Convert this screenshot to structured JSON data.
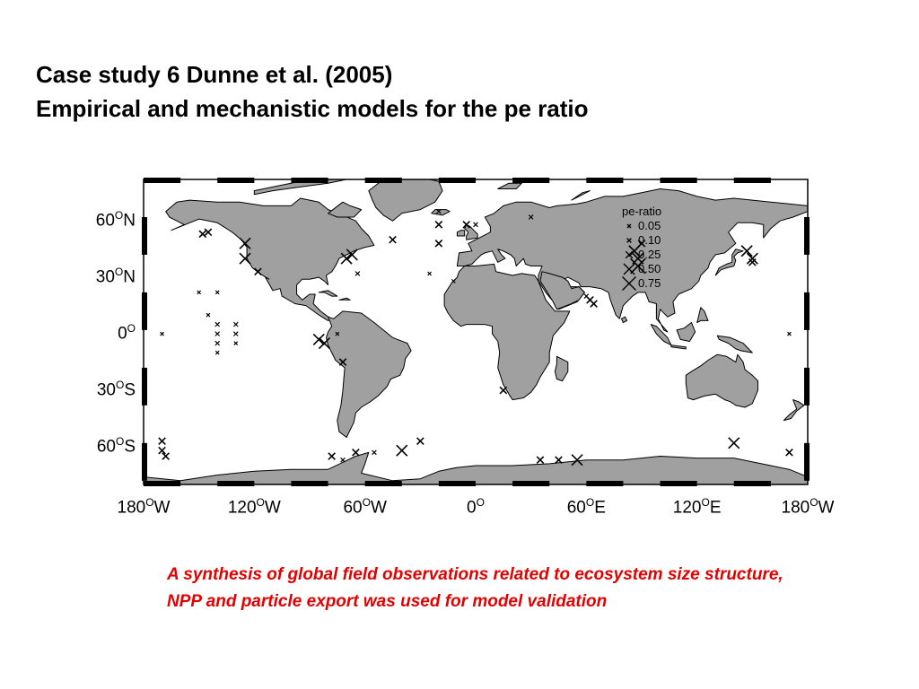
{
  "slide": {
    "title_line1": "Case study 6 Dunne et al. (2005)",
    "title_line2": "Empirical and mechanistic models for the pe ratio",
    "caption": "A synthesis of global field observations related to ecosystem size structure, NPP and particle export was used for model validation"
  },
  "map": {
    "lat_labels": [
      {
        "deg": "60",
        "hem": "N",
        "lat": 60
      },
      {
        "deg": "30",
        "hem": "N",
        "lat": 30
      },
      {
        "deg": "0",
        "hem": "",
        "lat": 0
      },
      {
        "deg": "30",
        "hem": "S",
        "lat": -30
      },
      {
        "deg": "60",
        "hem": "S",
        "lat": -60
      }
    ],
    "lon_labels": [
      {
        "deg": "180",
        "hem": "W",
        "lon": -180
      },
      {
        "deg": "120",
        "hem": "W",
        "lon": -120
      },
      {
        "deg": "60",
        "hem": "W",
        "lon": -60
      },
      {
        "deg": "0",
        "hem": "",
        "lon": 0
      },
      {
        "deg": "60",
        "hem": "E",
        "lon": 60
      },
      {
        "deg": "120",
        "hem": "E",
        "lon": 120
      },
      {
        "deg": "180",
        "hem": "W",
        "lon": 180
      }
    ],
    "degree_symbol": "O",
    "land_color": "#a0a0a0",
    "legend": {
      "title": "pe-ratio",
      "entries": [
        {
          "label": "0.05",
          "value": 0.05
        },
        {
          "label": "0.10",
          "value": 0.1
        },
        {
          "label": "0.25",
          "value": 0.25
        },
        {
          "label": "0.50",
          "value": 0.5
        },
        {
          "label": "0.75",
          "value": 0.75
        }
      ]
    },
    "observations": [
      {
        "lon": 150,
        "lat": 40,
        "pe": 0.5
      },
      {
        "lon": 147,
        "lat": 44,
        "pe": 0.5
      },
      {
        "lon": 150,
        "lat": 38,
        "pe": 0.25
      },
      {
        "lon": 88,
        "lat": 36,
        "pe": 0.75
      },
      {
        "lon": 88,
        "lat": 40,
        "pe": 0.5
      },
      {
        "lon": 86,
        "lat": 44,
        "pe": 0.5
      },
      {
        "lon": 90,
        "lat": 48,
        "pe": 0.25
      },
      {
        "lon": 62,
        "lat": 18,
        "pe": 0.25
      },
      {
        "lon": 64,
        "lat": 16,
        "pe": 0.25
      },
      {
        "lon": 60,
        "lat": 20,
        "pe": 0.1
      },
      {
        "lon": -148,
        "lat": 53,
        "pe": 0.25
      },
      {
        "lon": -145,
        "lat": 54,
        "pe": 0.25
      },
      {
        "lon": -125,
        "lat": 48,
        "pe": 0.5
      },
      {
        "lon": -125,
        "lat": 40,
        "pe": 0.5
      },
      {
        "lon": -118,
        "lat": 33,
        "pe": 0.25
      },
      {
        "lon": -70,
        "lat": 40,
        "pe": 0.5
      },
      {
        "lon": -67,
        "lat": 42,
        "pe": 0.5
      },
      {
        "lon": -45,
        "lat": 50,
        "pe": 0.25
      },
      {
        "lon": -64,
        "lat": 32,
        "pe": 0.1
      },
      {
        "lon": -20,
        "lat": 58,
        "pe": 0.25
      },
      {
        "lon": -20,
        "lat": 48,
        "pe": 0.25
      },
      {
        "lon": -20,
        "lat": 65,
        "pe": 0.1
      },
      {
        "lon": -5,
        "lat": 58,
        "pe": 0.25
      },
      {
        "lon": 0,
        "lat": 58,
        "pe": 0.1
      },
      {
        "lon": 30,
        "lat": 62,
        "pe": 0.1
      },
      {
        "lon": -25,
        "lat": 32,
        "pe": 0.05
      },
      {
        "lon": -12,
        "lat": 28,
        "pe": 0.05
      },
      {
        "lon": -150,
        "lat": 22,
        "pe": 0.05
      },
      {
        "lon": -140,
        "lat": 22,
        "pe": 0.05
      },
      {
        "lon": -140,
        "lat": 5,
        "pe": 0.1
      },
      {
        "lon": -140,
        "lat": 0,
        "pe": 0.1
      },
      {
        "lon": -140,
        "lat": -5,
        "pe": 0.1
      },
      {
        "lon": -140,
        "lat": -10,
        "pe": 0.05
      },
      {
        "lon": -130,
        "lat": 5,
        "pe": 0.1
      },
      {
        "lon": -130,
        "lat": 0,
        "pe": 0.1
      },
      {
        "lon": -130,
        "lat": -5,
        "pe": 0.05
      },
      {
        "lon": -170,
        "lat": 0,
        "pe": 0.05
      },
      {
        "lon": -145,
        "lat": 10,
        "pe": 0.05
      },
      {
        "lon": -85,
        "lat": -3,
        "pe": 0.5
      },
      {
        "lon": -82,
        "lat": -5,
        "pe": 0.5
      },
      {
        "lon": -75,
        "lat": 0,
        "pe": 0.05
      },
      {
        "lon": -72,
        "lat": -15,
        "pe": 0.25
      },
      {
        "lon": 15,
        "lat": -30,
        "pe": 0.25
      },
      {
        "lon": -170,
        "lat": -57,
        "pe": 0.25
      },
      {
        "lon": -170,
        "lat": -62,
        "pe": 0.25
      },
      {
        "lon": -168,
        "lat": -65,
        "pe": 0.25
      },
      {
        "lon": -78,
        "lat": -65,
        "pe": 0.25
      },
      {
        "lon": -72,
        "lat": -67,
        "pe": 0.1
      },
      {
        "lon": -65,
        "lat": -63,
        "pe": 0.25
      },
      {
        "lon": -40,
        "lat": -62,
        "pe": 0.5
      },
      {
        "lon": -30,
        "lat": -57,
        "pe": 0.25
      },
      {
        "lon": -55,
        "lat": -63,
        "pe": 0.1
      },
      {
        "lon": 35,
        "lat": -67,
        "pe": 0.25
      },
      {
        "lon": 45,
        "lat": -67,
        "pe": 0.25
      },
      {
        "lon": 55,
        "lat": -67,
        "pe": 0.5
      },
      {
        "lon": 140,
        "lat": -58,
        "pe": 0.5
      },
      {
        "lon": 170,
        "lat": -63,
        "pe": 0.25
      },
      {
        "lon": 170,
        "lat": 0,
        "pe": 0.05
      }
    ]
  }
}
